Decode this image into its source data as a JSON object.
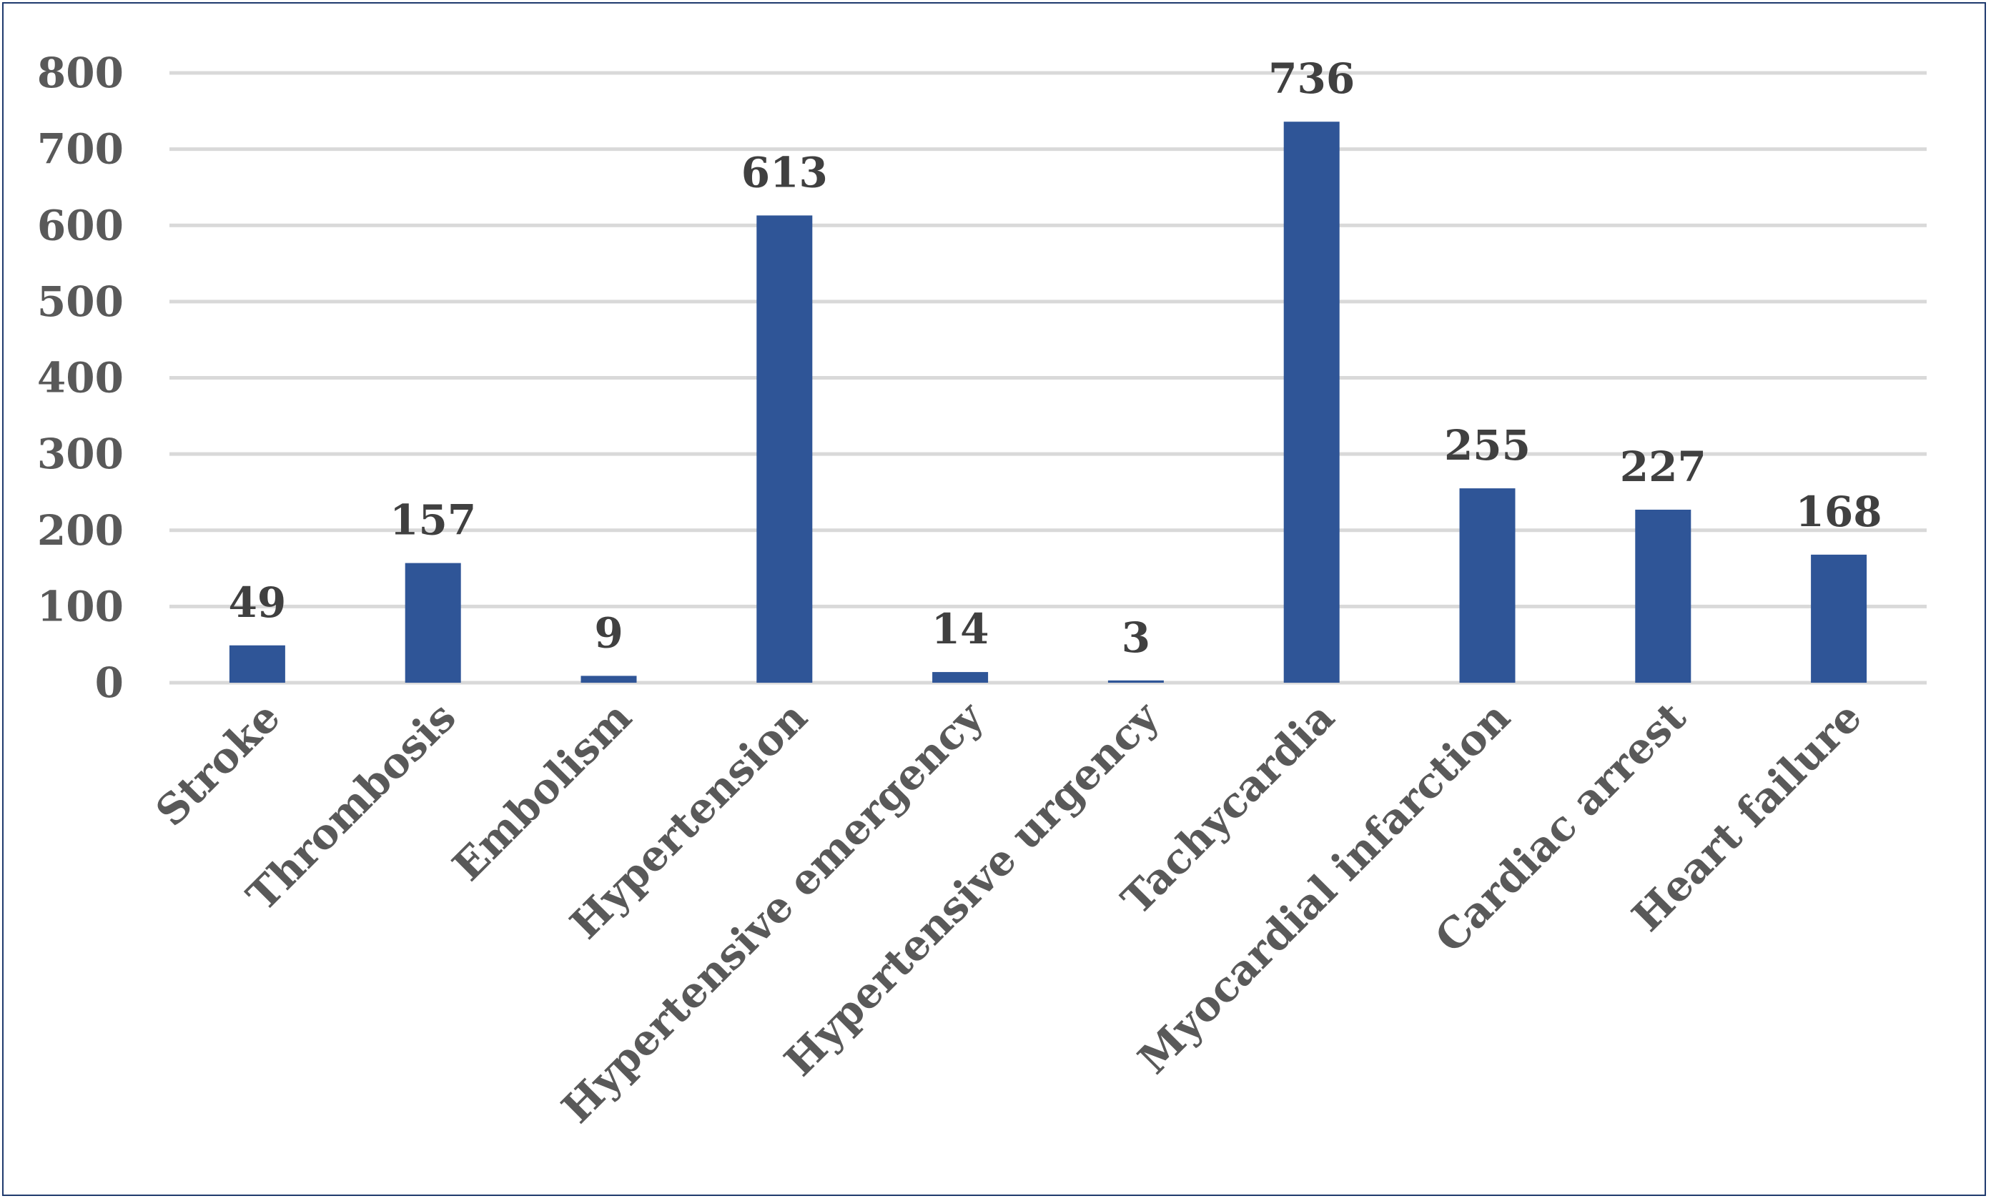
{
  "chart_data": {
    "type": "bar",
    "categories": [
      "Stroke",
      "Thrombosis",
      "Embolism",
      "Hypertension",
      "Hypertensive emergency",
      "Hypertensive urgency",
      "Tachycardia",
      "Myocardial infarction",
      "Cardiac arrest",
      "Heart failure"
    ],
    "values": [
      49,
      157,
      9,
      613,
      14,
      3,
      736,
      255,
      227,
      168
    ],
    "data_labels": [
      "49",
      "157",
      "9",
      "613",
      "14",
      "3",
      "736",
      "255",
      "227",
      "168"
    ],
    "y_ticks": [
      "0",
      "100",
      "200",
      "300",
      "400",
      "500",
      "600",
      "700",
      "800"
    ],
    "ylim": [
      0,
      800
    ],
    "grid": true,
    "legend": "none",
    "title": "",
    "xlabel": "",
    "ylabel": "",
    "colors": {
      "bar": "#2f5597",
      "grid": "#d9d9d9",
      "frame": "#1f3a6e"
    }
  }
}
